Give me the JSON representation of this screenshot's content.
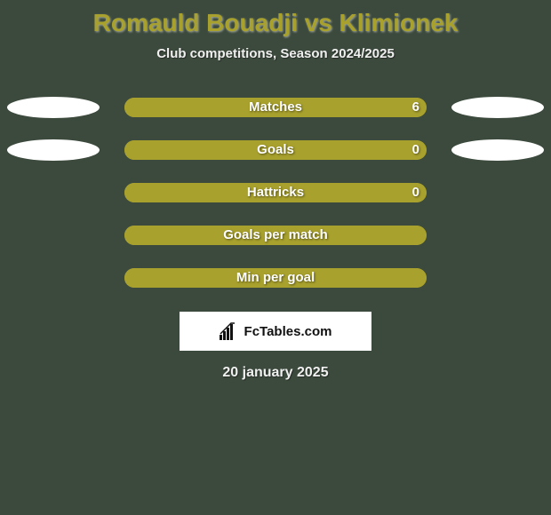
{
  "background_color": "#3c4a3d",
  "title": {
    "text": "Romauld Bouadji vs Klimionek",
    "color": "#a8a12d",
    "fontsize": 28
  },
  "subtitle": {
    "text": "Club competitions, Season 2024/2025",
    "color": "#f0f0f0",
    "fontsize": 15
  },
  "bar_style": {
    "track_color": "#a8a12d",
    "fill_color": "#a8a12d",
    "track_width": 340,
    "track_height": 22,
    "border_radius": 11
  },
  "ellipse_color": "#ffffff",
  "rows": [
    {
      "label": "Matches",
      "left_value": "",
      "right_value": "6",
      "left_pct": 0,
      "right_pct": 100,
      "show_left_ellipse": true,
      "show_right_ellipse": true,
      "ellipse_top_offset": 0
    },
    {
      "label": "Goals",
      "left_value": "",
      "right_value": "0",
      "left_pct": 0,
      "right_pct": 100,
      "show_left_ellipse": true,
      "show_right_ellipse": true,
      "ellipse_top_offset": 0
    },
    {
      "label": "Hattricks",
      "left_value": "",
      "right_value": "0",
      "left_pct": 0,
      "right_pct": 100,
      "show_left_ellipse": false,
      "show_right_ellipse": false
    },
    {
      "label": "Goals per match",
      "left_value": "",
      "right_value": "",
      "left_pct": 0,
      "right_pct": 100,
      "show_left_ellipse": false,
      "show_right_ellipse": false
    },
    {
      "label": "Min per goal",
      "left_value": "",
      "right_value": "",
      "left_pct": 0,
      "right_pct": 100,
      "show_left_ellipse": false,
      "show_right_ellipse": false
    }
  ],
  "footer": {
    "brand_text": "FcTables.com",
    "background": "#ffffff",
    "text_color": "#111111"
  },
  "date": {
    "text": "20 january 2025",
    "color": "#f0f0f0",
    "fontsize": 16
  }
}
